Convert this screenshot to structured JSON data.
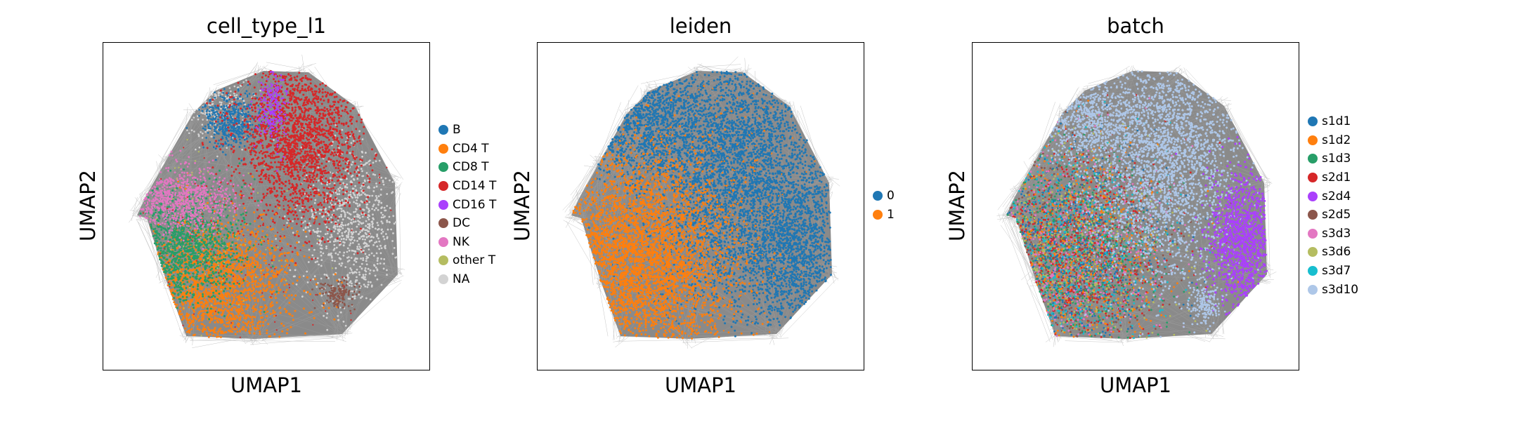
{
  "chart_data": [
    {
      "type": "scatter",
      "title": "cell_type_l1",
      "xlabel": "UMAP1",
      "ylabel": "UMAP2",
      "legend_position": "right",
      "grid": false,
      "categories": [
        {
          "name": "B",
          "color": "#1f77b4"
        },
        {
          "name": "CD4 T",
          "color": "#ff7f0e"
        },
        {
          "name": "CD8 T",
          "color": "#279e68"
        },
        {
          "name": "CD14 T",
          "color": "#d62728"
        },
        {
          "name": "CD16 T",
          "color": "#aa40fc"
        },
        {
          "name": "DC",
          "color": "#8c564b"
        },
        {
          "name": "NK",
          "color": "#e377c2"
        },
        {
          "name": "other T",
          "color": "#b5bd61"
        },
        {
          "name": "NA",
          "color": "#d3d3d3"
        }
      ]
    },
    {
      "type": "scatter",
      "title": "leiden",
      "xlabel": "UMAP1",
      "ylabel": "UMAP2",
      "legend_position": "right",
      "grid": false,
      "categories": [
        {
          "name": "0",
          "color": "#1f77b4"
        },
        {
          "name": "1",
          "color": "#ff7f0e"
        }
      ]
    },
    {
      "type": "scatter",
      "title": "batch",
      "xlabel": "UMAP1",
      "ylabel": "UMAP2",
      "legend_position": "right",
      "grid": false,
      "categories": [
        {
          "name": "s1d1",
          "color": "#1f77b4"
        },
        {
          "name": "s1d2",
          "color": "#ff7f0e"
        },
        {
          "name": "s1d3",
          "color": "#279e68"
        },
        {
          "name": "s2d1",
          "color": "#d62728"
        },
        {
          "name": "s2d4",
          "color": "#aa40fc"
        },
        {
          "name": "s2d5",
          "color": "#8c564b"
        },
        {
          "name": "s3d3",
          "color": "#e377c2"
        },
        {
          "name": "s3d6",
          "color": "#b5bd61"
        },
        {
          "name": "s3d7",
          "color": "#17becf"
        },
        {
          "name": "s3d10",
          "color": "#aec7e8"
        }
      ]
    }
  ]
}
